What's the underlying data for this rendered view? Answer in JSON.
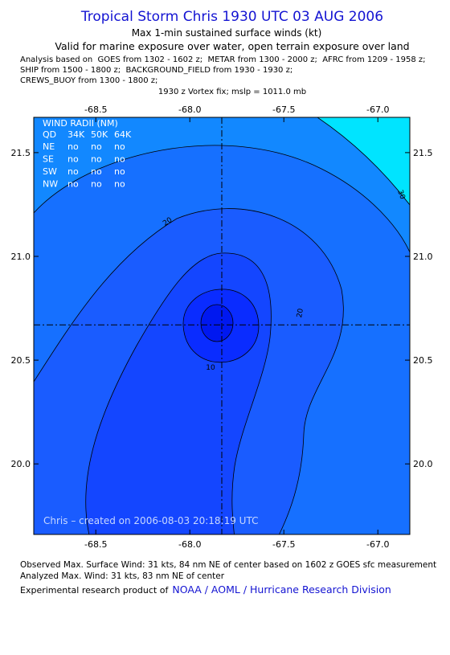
{
  "header": {
    "title": "Tropical Storm Chris 1930 UTC 03 AUG 2006",
    "subtitle": "Max 1-min sustained surface winds (kt)",
    "valid": "Valid for marine exposure over water, open terrain exposure over land",
    "analysis": [
      "Analysis based on  GOES from 1302 - 1602 z;  METAR from 1300 - 2000 z;  AFRC from 1209 - 1958 z;",
      "SHIP from 1500 - 1800 z;  BACKGROUND_FIELD from 1930 - 1930 z;",
      "CREWS_BUOY from 1300 - 1800 z;"
    ],
    "vortex_fix": "1930 z Vortex fix; mslp = 1011.0 mb"
  },
  "map": {
    "xlim": [
      -68.83,
      -66.83
    ],
    "ylim": [
      19.66,
      21.67
    ],
    "xticks": [
      -68.5,
      {
        "value": -68.0,
        "label": "-68.0"
      },
      -67.5,
      {
        "value": -67.0,
        "label": "-67.0"
      }
    ],
    "yticks": [
      {
        "value": 20.0,
        "label": "20.0"
      },
      20.5,
      {
        "value": 21.0,
        "label": "21.0"
      },
      21.5
    ],
    "center": {
      "lon": -67.83,
      "lat": 20.67
    },
    "contour_labels": [
      30,
      20,
      20,
      10
    ],
    "wind_radii": {
      "title": "WIND RADII (NM)",
      "columns": [
        "QD",
        "34K",
        "50K",
        "64K"
      ],
      "rows": [
        [
          "NE",
          "no",
          "no",
          "no"
        ],
        [
          "SE",
          "no",
          "no",
          "no"
        ],
        [
          "SW",
          "no",
          "no",
          "no"
        ],
        [
          "NW",
          "no",
          "no",
          "no"
        ]
      ]
    },
    "credit": "Chris – created on 2006-08-03 20:18:19 UTC"
  },
  "footer": {
    "observed": "Observed Max. Surface Wind: 31 kts, 84 nm NE of center based on 1602 z GOES sfc measurement",
    "analyzed": "Analyzed Max. Wind: 31 kts, 83 nm NE of center",
    "product_prefix": "Experimental research product of",
    "product_link": "NOAA / AOML / Hurricane Research Division"
  }
}
